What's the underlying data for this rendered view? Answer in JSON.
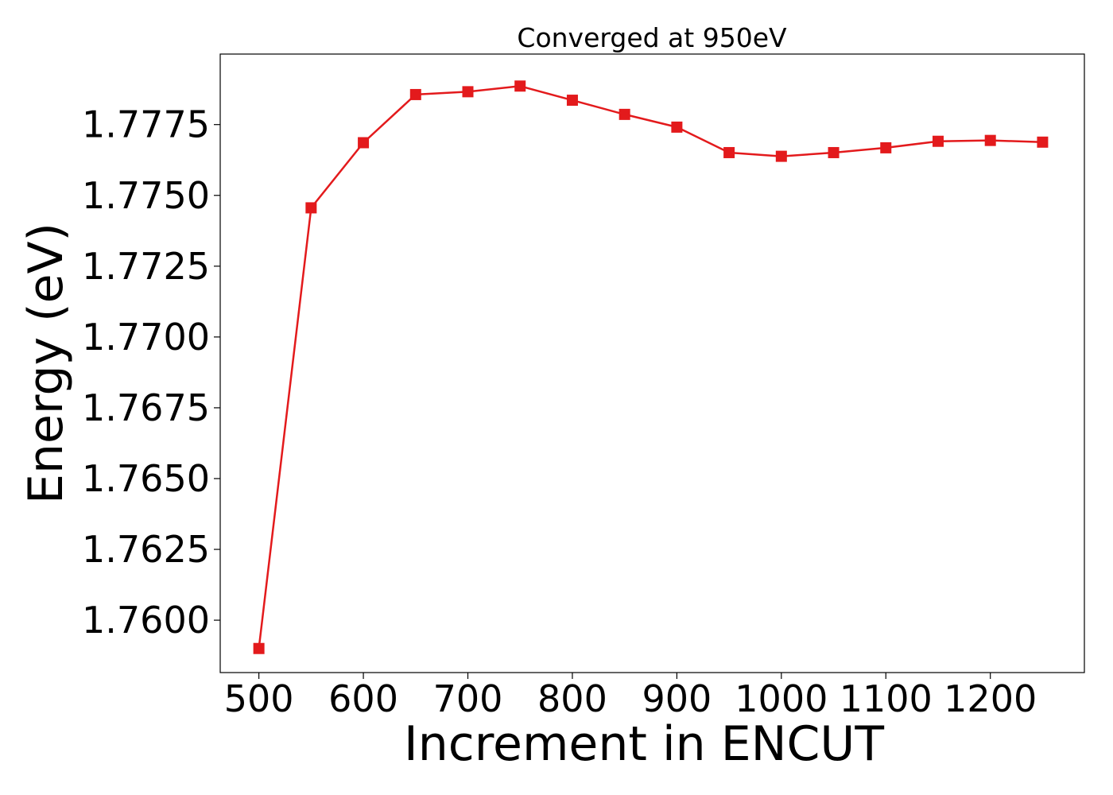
{
  "chart_data": {
    "type": "line",
    "title": "Converged at 950eV",
    "xlabel": "Increment in ENCUT",
    "ylabel": "Energy (eV)",
    "xlim": [
      463,
      1290
    ],
    "ylim": [
      1.75815,
      1.77999
    ],
    "x_ticks": [
      500,
      600,
      700,
      800,
      900,
      1000,
      1100,
      1200
    ],
    "y_ticks": [
      1.76,
      1.7625,
      1.765,
      1.7675,
      1.77,
      1.7725,
      1.775,
      1.7775
    ],
    "y_tick_labels": [
      "1.7600",
      "1.7625",
      "1.7650",
      "1.7675",
      "1.7700",
      "1.7725",
      "1.7750",
      "1.7775"
    ],
    "grid": false,
    "series": [
      {
        "color": "#e31a1c",
        "marker": "square",
        "x": [
          500,
          550,
          600,
          650,
          700,
          750,
          800,
          850,
          900,
          950,
          1000,
          1050,
          1100,
          1150,
          1200,
          1250
        ],
        "y": [
          1.759,
          1.77456,
          1.77686,
          1.77856,
          1.77866,
          1.77886,
          1.77836,
          1.77786,
          1.77741,
          1.77651,
          1.77638,
          1.77651,
          1.77668,
          1.77691,
          1.77694,
          1.77688
        ]
      }
    ]
  }
}
